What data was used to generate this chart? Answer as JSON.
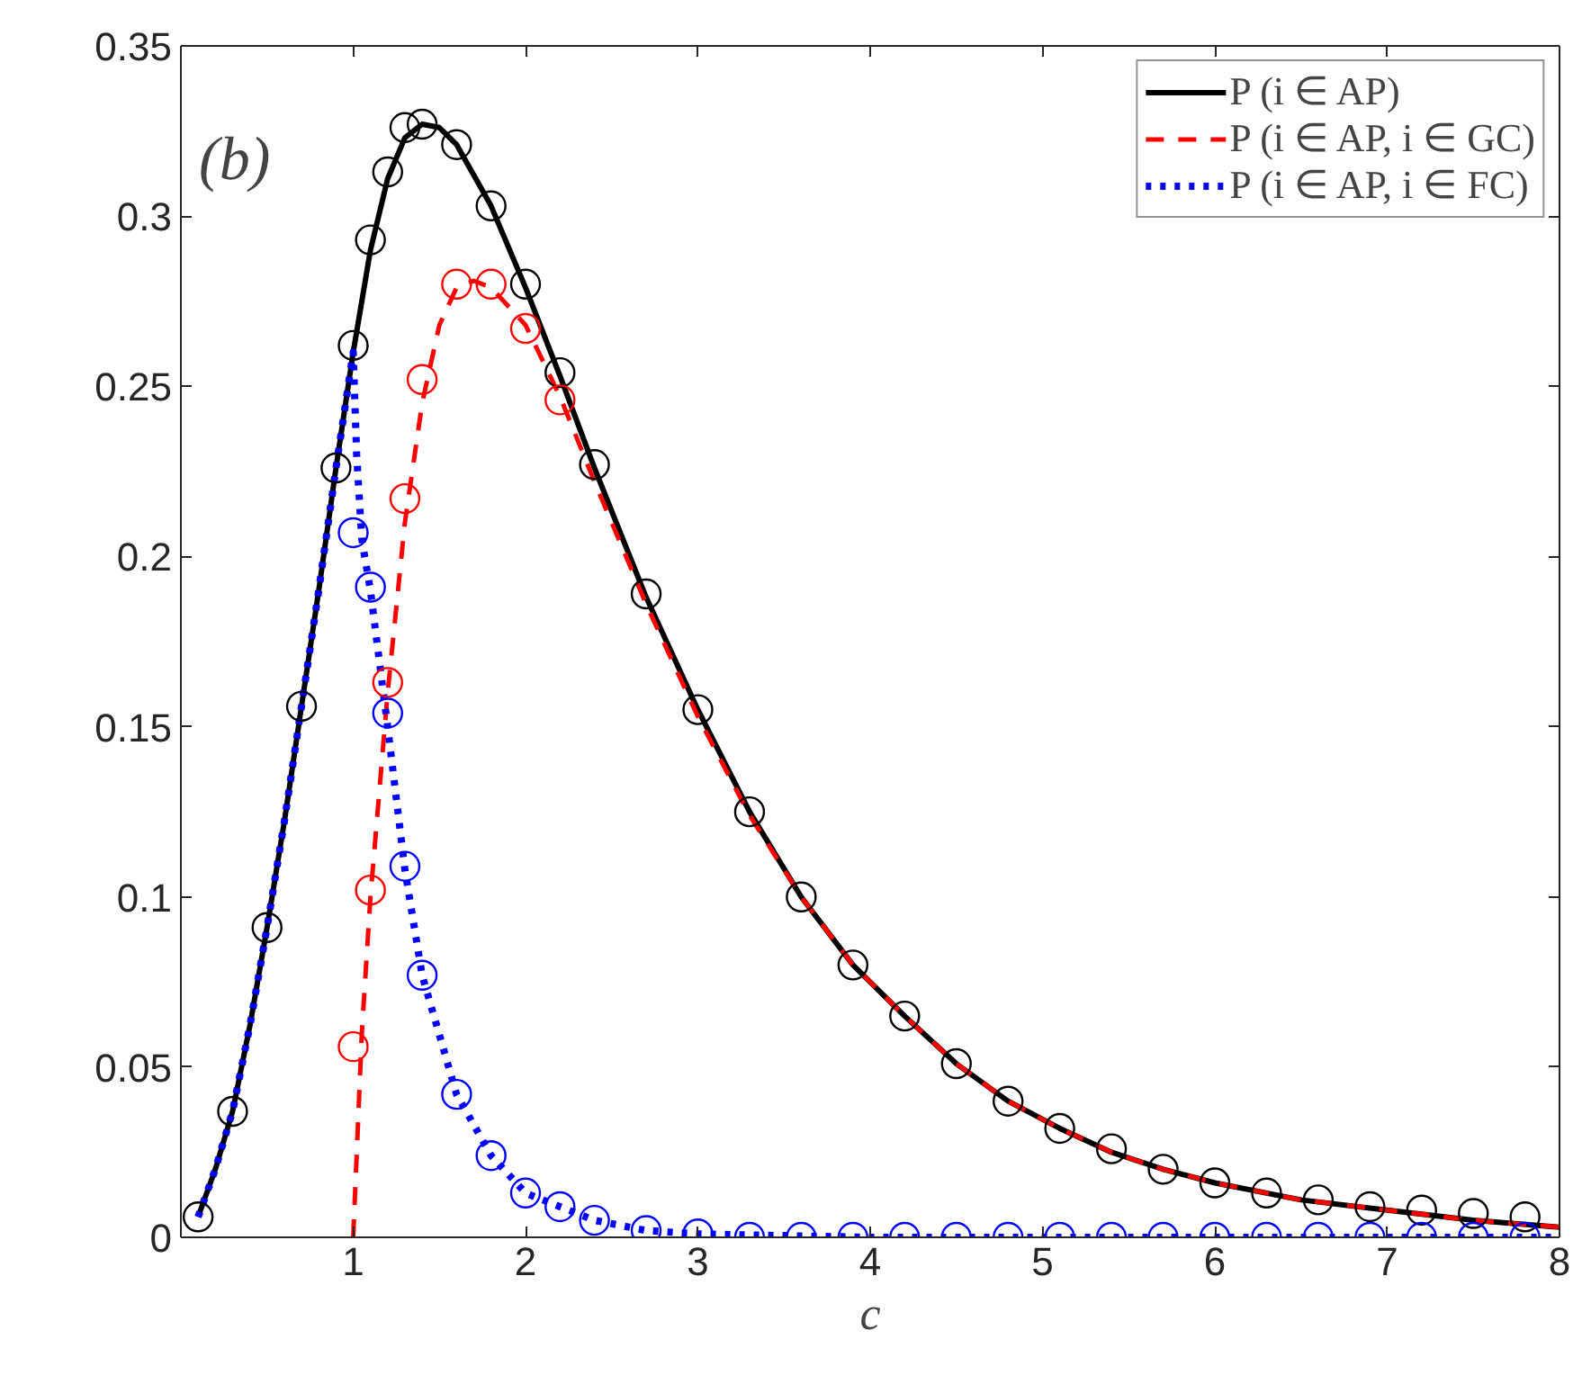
{
  "chart_data": {
    "type": "line",
    "xlabel": "c",
    "annotations": [
      "(b)"
    ],
    "xlim": [
      0,
      8
    ],
    "xticks": [
      1,
      2,
      3,
      4,
      5,
      6,
      7,
      8
    ],
    "ylim": [
      0,
      0.35
    ],
    "yticks": [
      0,
      0.05,
      0.1,
      0.15,
      0.2,
      0.25,
      0.3,
      0.35
    ],
    "grid": false,
    "legend": "top right",
    "series": [
      {
        "name": "P (i ∈ AP)",
        "color": "#000000",
        "line_style": "solid",
        "marker": "none",
        "x": [
          0.1,
          0.2,
          0.3,
          0.4,
          0.5,
          0.6,
          0.7,
          0.8,
          0.9,
          1.0,
          1.1,
          1.2,
          1.3,
          1.4,
          1.5,
          1.6,
          1.8,
          2.0,
          2.2,
          2.4,
          2.7,
          3.0,
          3.3,
          3.6,
          3.9,
          4.2,
          4.5,
          4.8,
          5.1,
          5.4,
          5.7,
          6.0,
          6.5,
          7.0,
          7.5,
          8.0
        ],
        "values": [
          0.006,
          0.02,
          0.037,
          0.062,
          0.091,
          0.122,
          0.156,
          0.19,
          0.226,
          0.26,
          0.29,
          0.311,
          0.323,
          0.327,
          0.326,
          0.321,
          0.303,
          0.279,
          0.253,
          0.226,
          0.188,
          0.155,
          0.125,
          0.1,
          0.08,
          0.065,
          0.051,
          0.04,
          0.032,
          0.025,
          0.02,
          0.016,
          0.011,
          0.008,
          0.005,
          0.003
        ]
      },
      {
        "name": "P (i ∈ AP, i ∈ GC)",
        "color": "#ff0000",
        "line_style": "dashed",
        "marker": "none",
        "x": [
          1.0,
          1.05,
          1.1,
          1.2,
          1.3,
          1.4,
          1.5,
          1.6,
          1.7,
          1.8,
          2.0,
          2.2,
          2.4,
          2.7,
          3.0,
          3.3,
          3.6,
          3.9,
          4.2,
          4.5,
          4.8,
          5.1,
          5.4,
          5.7,
          6.0,
          6.5,
          7.0,
          7.5,
          8.0
        ],
        "values": [
          0,
          0.06,
          0.1,
          0.16,
          0.21,
          0.245,
          0.268,
          0.279,
          0.281,
          0.279,
          0.268,
          0.247,
          0.222,
          0.186,
          0.153,
          0.124,
          0.1,
          0.08,
          0.065,
          0.051,
          0.04,
          0.032,
          0.025,
          0.02,
          0.016,
          0.011,
          0.008,
          0.005,
          0.003
        ]
      },
      {
        "name": "P (i ∈ AP, i ∈ FC)",
        "color": "#0000ff",
        "line_style": "dotted",
        "marker": "none",
        "x": [
          0.1,
          0.2,
          0.3,
          0.4,
          0.5,
          0.6,
          0.7,
          0.8,
          0.9,
          1.0,
          1.02,
          1.05,
          1.1,
          1.2,
          1.3,
          1.4,
          1.6,
          1.8,
          2.0,
          2.2,
          2.4,
          2.7,
          3.0,
          4.0,
          8.0
        ],
        "values": [
          0.006,
          0.02,
          0.037,
          0.062,
          0.091,
          0.122,
          0.156,
          0.19,
          0.226,
          0.26,
          0.23,
          0.205,
          0.19,
          0.15,
          0.108,
          0.077,
          0.042,
          0.024,
          0.013,
          0.009,
          0.005,
          0.002,
          0.001,
          0,
          0
        ]
      },
      {
        "type": "scatter",
        "color": "#000000",
        "marker": "circle",
        "x": [
          0.1,
          0.3,
          0.5,
          0.7,
          0.9,
          1.0,
          1.1,
          1.2,
          1.3,
          1.4,
          1.6,
          1.8,
          2.0,
          2.2,
          2.4,
          2.7,
          3.0,
          3.3,
          3.6,
          3.9,
          4.2,
          4.5,
          4.8,
          5.1,
          5.4,
          5.7,
          6.0,
          6.3,
          6.6,
          6.9,
          7.2,
          7.5,
          7.8
        ],
        "values": [
          0.006,
          0.037,
          0.091,
          0.156,
          0.226,
          0.262,
          0.293,
          0.313,
          0.326,
          0.327,
          0.321,
          0.303,
          0.28,
          0.254,
          0.227,
          0.189,
          0.155,
          0.125,
          0.1,
          0.08,
          0.065,
          0.051,
          0.04,
          0.032,
          0.026,
          0.02,
          0.016,
          0.013,
          0.011,
          0.009,
          0.008,
          0.007,
          0.006
        ]
      },
      {
        "type": "scatter",
        "color": "#ff0000",
        "marker": "circle",
        "x": [
          1.0,
          1.1,
          1.2,
          1.3,
          1.4,
          1.6,
          1.8,
          2.0,
          2.2
        ],
        "values": [
          0.056,
          0.102,
          0.163,
          0.217,
          0.252,
          0.28,
          0.28,
          0.267,
          0.246
        ]
      },
      {
        "type": "scatter",
        "color": "#0000ff",
        "marker": "circle",
        "x": [
          1.0,
          1.1,
          1.2,
          1.3,
          1.4,
          1.6,
          1.8,
          2.0,
          2.2,
          2.4,
          2.7,
          3.0,
          3.3,
          3.6,
          3.9,
          4.2,
          4.5,
          4.8,
          5.1,
          5.4,
          5.7,
          6.0,
          6.3,
          6.6,
          6.9,
          7.2,
          7.5,
          7.8
        ],
        "values": [
          0.207,
          0.191,
          0.154,
          0.109,
          0.077,
          0.042,
          0.024,
          0.013,
          0.009,
          0.005,
          0.002,
          0.001,
          0,
          0,
          0,
          0,
          0,
          0,
          0,
          0,
          0,
          0,
          0,
          0,
          0,
          0,
          0,
          0
        ]
      }
    ]
  }
}
